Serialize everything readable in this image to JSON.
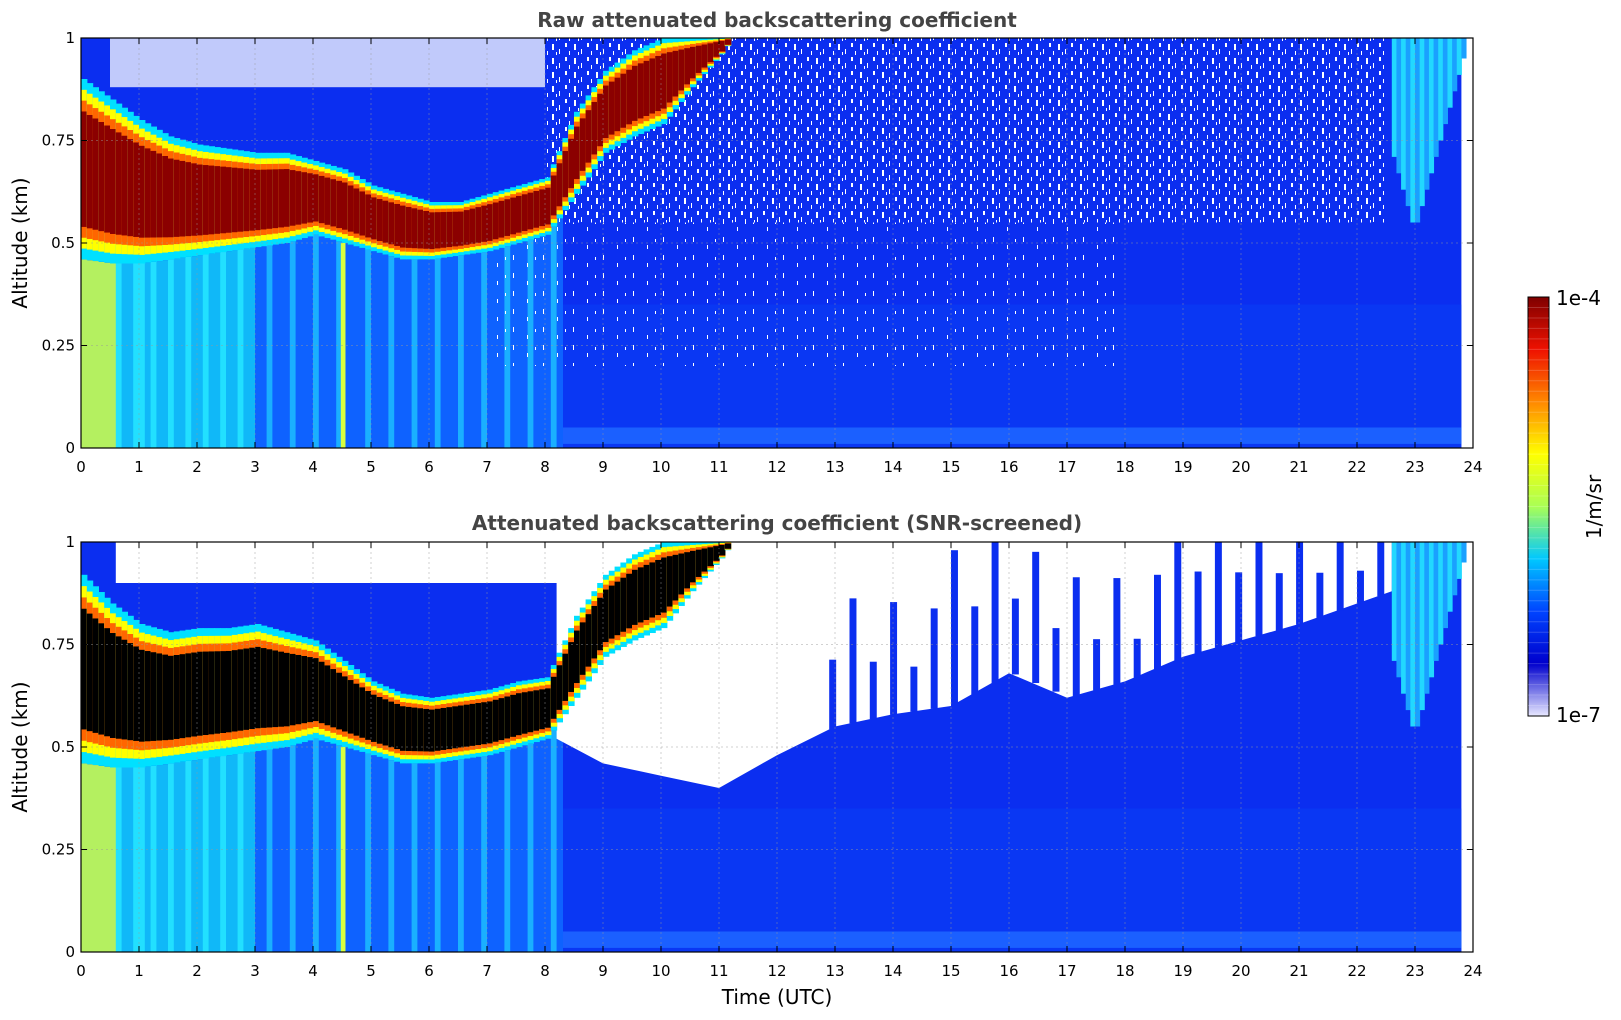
{
  "chart_data": [
    {
      "type": "heatmap",
      "title": "Raw attenuated backscattering coefficient",
      "xlabel": "",
      "ylabel": "Altitude (km)",
      "xlim": [
        0,
        24
      ],
      "ylim": [
        0,
        1
      ],
      "x_ticks": [
        "0",
        "1",
        "2",
        "3",
        "4",
        "5",
        "6",
        "7",
        "8",
        "9",
        "10",
        "11",
        "12",
        "13",
        "14",
        "15",
        "16",
        "17",
        "18",
        "19",
        "20",
        "21",
        "22",
        "23",
        "24"
      ],
      "y_ticks": [
        "0",
        "0.25",
        "0.5",
        "0.75",
        "1"
      ],
      "grid": true,
      "data_end_time_utc": 23.8,
      "cloud_layer": {
        "time_utc": [
          0,
          0.5,
          1,
          1.5,
          2,
          2.5,
          3,
          3.5,
          4,
          4.5,
          5,
          5.5,
          6,
          6.5,
          7,
          7.5,
          8,
          8.5,
          9,
          9.5,
          10,
          10.5,
          11,
          11.2
        ],
        "base_km": [
          0.46,
          0.45,
          0.45,
          0.46,
          0.47,
          0.48,
          0.49,
          0.5,
          0.52,
          0.5,
          0.48,
          0.46,
          0.46,
          0.47,
          0.48,
          0.5,
          0.52,
          0.62,
          0.72,
          0.76,
          0.79,
          0.88,
          0.96,
          1.0
        ],
        "top_km": [
          0.9,
          0.85,
          0.8,
          0.76,
          0.74,
          0.73,
          0.72,
          0.72,
          0.7,
          0.68,
          0.64,
          0.62,
          0.6,
          0.6,
          0.62,
          0.64,
          0.66,
          0.82,
          0.92,
          0.97,
          1.0,
          1.0,
          1.0,
          1.0
        ]
      },
      "plume": {
        "time_utc": [
          22.6,
          23.8
        ],
        "lowest_km": 0.53
      }
    },
    {
      "type": "heatmap",
      "title": "Attenuated backscattering coefficient (SNR-screened)",
      "xlabel": "Time (UTC)",
      "ylabel": "Altitude (km)",
      "xlim": [
        0,
        24
      ],
      "ylim": [
        0,
        1
      ],
      "x_ticks": [
        "0",
        "1",
        "2",
        "3",
        "4",
        "5",
        "6",
        "7",
        "8",
        "9",
        "10",
        "11",
        "12",
        "13",
        "14",
        "15",
        "16",
        "17",
        "18",
        "19",
        "20",
        "21",
        "22",
        "23",
        "24"
      ],
      "y_ticks": [
        "0",
        "0.25",
        "0.5",
        "0.75",
        "1"
      ],
      "grid": true,
      "data_end_time_utc": 23.8,
      "cloud_layer": {
        "time_utc": [
          0,
          0.5,
          1,
          1.5,
          2,
          2.5,
          3,
          3.5,
          4,
          4.5,
          5,
          5.5,
          6,
          6.5,
          7,
          7.5,
          8,
          8.5,
          9,
          9.5,
          10,
          10.5,
          11,
          11.2
        ],
        "base_km": [
          0.46,
          0.45,
          0.45,
          0.46,
          0.47,
          0.48,
          0.49,
          0.5,
          0.52,
          0.5,
          0.48,
          0.46,
          0.46,
          0.47,
          0.48,
          0.5,
          0.52,
          0.62,
          0.72,
          0.76,
          0.79,
          0.88,
          0.96,
          1.0
        ],
        "top_km": [
          0.92,
          0.85,
          0.8,
          0.78,
          0.79,
          0.79,
          0.8,
          0.78,
          0.76,
          0.71,
          0.66,
          0.63,
          0.62,
          0.63,
          0.64,
          0.66,
          0.67,
          0.82,
          0.92,
          0.97,
          1.0,
          1.0,
          1.0,
          1.0
        ]
      },
      "screened_region": {
        "time_utc": [
          8.2,
          9,
          10,
          11,
          12,
          13,
          14,
          15,
          16,
          17,
          18,
          19,
          20,
          21,
          22,
          22.6
        ],
        "lowest_km": [
          0.52,
          0.46,
          0.43,
          0.4,
          0.48,
          0.55,
          0.58,
          0.6,
          0.68,
          0.62,
          0.66,
          0.72,
          0.76,
          0.8,
          0.85,
          0.88
        ]
      },
      "plume": {
        "time_utc": [
          22.6,
          23.8
        ],
        "lowest_km": 0.53
      }
    }
  ],
  "colorbar": {
    "label": "1/m/sr",
    "max_label": "1e-4",
    "min_label": "1e-7",
    "scale": "log",
    "colormap": "jet",
    "colors": [
      "#e8e8ff",
      "#0000cd",
      "#0044ff",
      "#00c8ff",
      "#aaff55",
      "#ffff00",
      "#ff8800",
      "#ee1100",
      "#7f0000"
    ]
  }
}
